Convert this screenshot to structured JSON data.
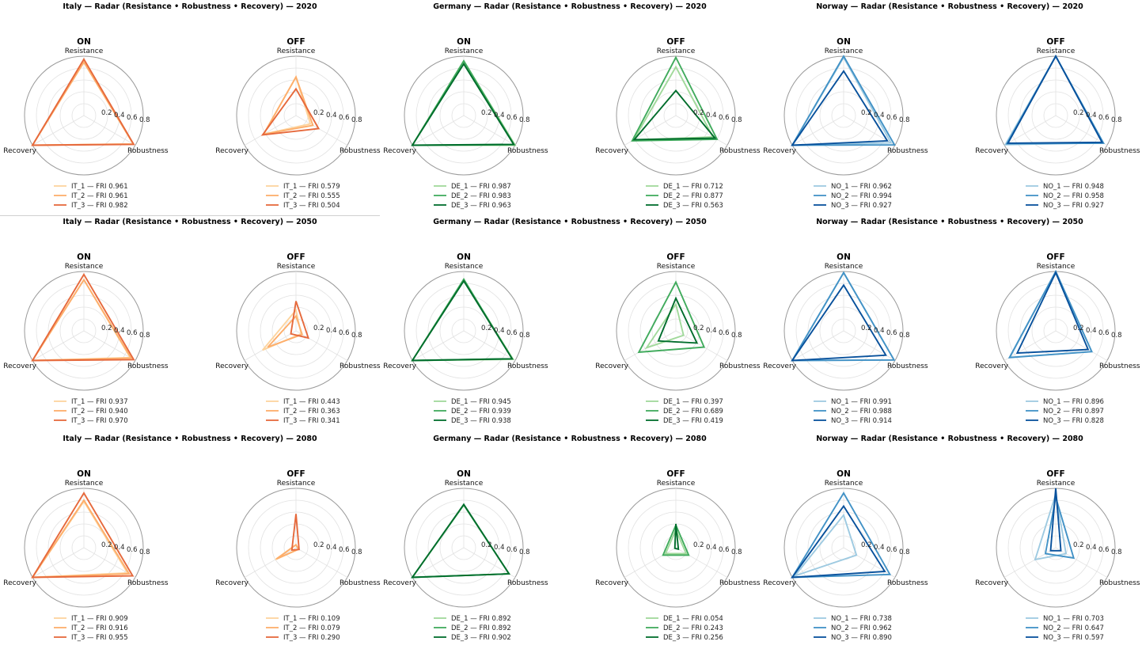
{
  "chart_data": {
    "type": "radar",
    "axes": [
      "Resistance",
      "Robustness",
      "Recovery"
    ],
    "rticks": [
      "0.2",
      "0.4",
      "0.6",
      "0.8"
    ],
    "rlim": [
      0,
      1
    ],
    "grid": true,
    "legend_position": "below",
    "countries": [
      {
        "id": "IT",
        "colors": [
          "#fdd49e",
          "#fdae6b",
          "#e6693c"
        ],
        "panels": [
          {
            "title": "Italy — Radar (Resistance • Robustness • Recovery) — 2020",
            "year": "2020",
            "on": {
              "label": "ON",
              "series": [
                {
                  "name": "IT_1",
                  "legend": "IT_1 — FRI 0.961",
                  "values": [
                    0.9,
                    0.96,
                    1.0
                  ]
                },
                {
                  "name": "IT_2",
                  "legend": "IT_2 — FRI 0.961",
                  "values": [
                    0.9,
                    0.96,
                    1.0
                  ]
                },
                {
                  "name": "IT_3",
                  "legend": "IT_3 — FRI 0.982",
                  "values": [
                    0.95,
                    0.97,
                    1.0
                  ]
                }
              ]
            },
            "off": {
              "label": "OFF",
              "series": [
                {
                  "name": "IT_1",
                  "legend": "IT_1 — FRI 0.579",
                  "values": [
                    0.65,
                    0.28,
                    0.63
                  ]
                },
                {
                  "name": "IT_2",
                  "legend": "IT_2 — FRI 0.555",
                  "values": [
                    0.65,
                    0.33,
                    0.63
                  ]
                },
                {
                  "name": "IT_3",
                  "legend": "IT_3 — FRI 0.504",
                  "values": [
                    0.45,
                    0.44,
                    0.65
                  ]
                }
              ]
            }
          },
          {
            "title": "Italy — Radar (Resistance • Robustness • Recovery) — 2050",
            "year": "2050",
            "on": {
              "label": "ON",
              "series": [
                {
                  "name": "IT_1",
                  "legend": "IT_1 — FRI 0.937",
                  "values": [
                    0.86,
                    0.9,
                    1.0
                  ]
                },
                {
                  "name": "IT_2",
                  "legend": "IT_2 — FRI 0.940",
                  "values": [
                    0.86,
                    0.92,
                    1.0
                  ]
                },
                {
                  "name": "IT_3",
                  "legend": "IT_3 — FRI 0.970",
                  "values": [
                    0.95,
                    0.97,
                    1.0
                  ]
                }
              ]
            },
            "off": {
              "label": "OFF",
              "series": [
                {
                  "name": "IT_1",
                  "legend": "IT_1 — FRI 0.443",
                  "values": [
                    0.35,
                    0.1,
                    0.65
                  ]
                },
                {
                  "name": "IT_2",
                  "legend": "IT_2 — FRI 0.363",
                  "values": [
                    0.25,
                    0.12,
                    0.55
                  ]
                },
                {
                  "name": "IT_3",
                  "legend": "IT_3 — FRI 0.341",
                  "values": [
                    0.5,
                    0.24,
                    0.1
                  ]
                }
              ]
            }
          },
          {
            "title": "Italy — Radar (Resistance • Robustness • Recovery) — 2080",
            "year": "2080",
            "on": {
              "label": "ON",
              "series": [
                {
                  "name": "IT_1",
                  "legend": "IT_1 — FRI 0.909",
                  "values": [
                    0.78,
                    0.85,
                    1.0
                  ]
                },
                {
                  "name": "IT_2",
                  "legend": "IT_2 — FRI 0.916",
                  "values": [
                    0.8,
                    0.88,
                    1.0
                  ]
                },
                {
                  "name": "IT_3",
                  "legend": "IT_3 — FRI 0.955",
                  "values": [
                    0.92,
                    0.95,
                    1.0
                  ]
                }
              ]
            },
            "off": {
              "label": "OFF",
              "series": [
                {
                  "name": "IT_1",
                  "legend": "IT_1 — FRI 0.109",
                  "values": [
                    0.05,
                    0.05,
                    0.4
                  ]
                },
                {
                  "name": "IT_2",
                  "legend": "IT_2 — FRI 0.079",
                  "values": [
                    0.05,
                    0.05,
                    0.38
                  ]
                },
                {
                  "name": "IT_3",
                  "legend": "IT_3 — FRI 0.290",
                  "values": [
                    0.57,
                    0.06,
                    0.08
                  ]
                }
              ]
            }
          }
        ]
      },
      {
        "id": "DE",
        "colors": [
          "#a1d99b",
          "#41ab5d",
          "#006d2c"
        ],
        "panels": [
          {
            "title": "Germany — Radar (Resistance • Robustness • Recovery) — 2020",
            "year": "2020",
            "on": {
              "label": "ON",
              "series": [
                {
                  "name": "DE_1",
                  "legend": "DE_1 — FRI 0.987",
                  "values": [
                    0.92,
                    1.0,
                    1.0
                  ]
                },
                {
                  "name": "DE_2",
                  "legend": "DE_2 — FRI 0.983",
                  "values": [
                    0.92,
                    0.98,
                    1.0
                  ]
                },
                {
                  "name": "DE_3",
                  "legend": "DE_3 — FRI 0.963",
                  "values": [
                    0.87,
                    0.97,
                    1.0
                  ]
                }
              ]
            },
            "off": {
              "label": "OFF",
              "series": [
                {
                  "name": "DE_1",
                  "legend": "DE_1 — FRI 0.712",
                  "values": [
                    0.82,
                    0.72,
                    0.82
                  ]
                },
                {
                  "name": "DE_2",
                  "legend": "DE_2 — FRI 0.877",
                  "values": [
                    0.98,
                    0.8,
                    0.85
                  ]
                },
                {
                  "name": "DE_3",
                  "legend": "DE_3 — FRI 0.563",
                  "values": [
                    0.42,
                    0.76,
                    0.81
                  ]
                }
              ]
            }
          },
          {
            "title": "Germany — Radar (Resistance • Robustness • Recovery) — 2050",
            "year": "2050",
            "on": {
              "label": "ON",
              "series": [
                {
                  "name": "DE_1",
                  "legend": "DE_1 — FRI 0.945",
                  "values": [
                    0.85,
                    0.96,
                    1.0
                  ]
                },
                {
                  "name": "DE_2",
                  "legend": "DE_2 — FRI 0.939",
                  "values": [
                    0.87,
                    0.94,
                    1.0
                  ]
                },
                {
                  "name": "DE_3",
                  "legend": "DE_3 — FRI 0.938",
                  "values": [
                    0.84,
                    0.94,
                    1.0
                  ]
                }
              ]
            },
            "off": {
              "label": "OFF",
              "series": [
                {
                  "name": "DE_1",
                  "legend": "DE_1 — FRI 0.397",
                  "values": [
                    0.45,
                    0.15,
                    0.57
                  ]
                },
                {
                  "name": "DE_2",
                  "legend": "DE_2 — FRI 0.689",
                  "values": [
                    0.82,
                    0.55,
                    0.72
                  ]
                },
                {
                  "name": "DE_3",
                  "legend": "DE_3 — FRI 0.419",
                  "values": [
                    0.55,
                    0.41,
                    0.34
                  ]
                }
              ]
            }
          },
          {
            "title": "Germany — Radar (Resistance • Robustness • Recovery) — 2080",
            "year": "2080",
            "on": {
              "label": "ON",
              "series": [
                {
                  "name": "DE_1",
                  "legend": "DE_1 — FRI 0.892",
                  "values": [
                    0.72,
                    0.88,
                    1.0
                  ]
                },
                {
                  "name": "DE_2",
                  "legend": "DE_2 — FRI 0.892",
                  "values": [
                    0.72,
                    0.88,
                    1.0
                  ]
                },
                {
                  "name": "DE_3",
                  "legend": "DE_3 — FRI 0.902",
                  "values": [
                    0.73,
                    0.88,
                    1.0
                  ]
                }
              ]
            },
            "off": {
              "label": "OFF",
              "series": [
                {
                  "name": "DE_1",
                  "legend": "DE_1 — FRI 0.054",
                  "values": [
                    0.3,
                    0.2,
                    0.2
                  ]
                },
                {
                  "name": "DE_2",
                  "legend": "DE_2 — FRI 0.243",
                  "values": [
                    0.38,
                    0.25,
                    0.25
                  ]
                },
                {
                  "name": "DE_3",
                  "legend": "DE_3 — FRI 0.256",
                  "values": [
                    0.4,
                    0.05,
                    0.02
                  ]
                }
              ]
            }
          }
        ]
      },
      {
        "id": "NO",
        "colors": [
          "#9ecae1",
          "#4292c6",
          "#08519c"
        ],
        "panels": [
          {
            "title": "Norway — Radar (Resistance • Robustness • Recovery) — 2020",
            "year": "2020",
            "on": {
              "label": "ON",
              "series": [
                {
                  "name": "NO_1",
                  "legend": "NO_1 — FRI 0.962",
                  "values": [
                    0.98,
                    0.92,
                    1.0
                  ]
                },
                {
                  "name": "NO_2",
                  "legend": "NO_2 — FRI 0.994",
                  "values": [
                    1.0,
                    0.99,
                    1.0
                  ]
                },
                {
                  "name": "NO_3",
                  "legend": "NO_3 — FRI 0.927",
                  "values": [
                    0.75,
                    0.85,
                    1.0
                  ]
                }
              ]
            },
            "off": {
              "label": "OFF",
              "series": [
                {
                  "name": "NO_1",
                  "legend": "NO_1 — FRI 0.948",
                  "values": [
                    1.0,
                    0.92,
                    0.98
                  ]
                },
                {
                  "name": "NO_2",
                  "legend": "NO_2 — FRI 0.958",
                  "values": [
                    1.0,
                    0.93,
                    0.95
                  ]
                },
                {
                  "name": "NO_3",
                  "legend": "NO_3 — FRI 0.927",
                  "values": [
                    1.0,
                    0.9,
                    0.93
                  ]
                }
              ]
            }
          },
          {
            "title": "Norway — Radar (Resistance • Robustness • Recovery) — 2050",
            "year": "2050",
            "on": {
              "label": "ON",
              "series": [
                {
                  "name": "NO_1",
                  "legend": "NO_1 — FRI 0.991",
                  "values": [
                    0.98,
                    0.98,
                    1.0
                  ]
                },
                {
                  "name": "NO_2",
                  "legend": "NO_2 — FRI 0.988",
                  "values": [
                    0.98,
                    0.98,
                    1.0
                  ]
                },
                {
                  "name": "NO_3",
                  "legend": "NO_3 — FRI 0.914",
                  "values": [
                    0.77,
                    0.82,
                    1.0
                  ]
                }
              ]
            },
            "off": {
              "label": "OFF",
              "series": [
                {
                  "name": "NO_1",
                  "legend": "NO_1 — FRI 0.896",
                  "values": [
                    1.0,
                    0.7,
                    0.89
                  ]
                },
                {
                  "name": "NO_2",
                  "legend": "NO_2 — FRI 0.897",
                  "values": [
                    1.0,
                    0.7,
                    0.9
                  ]
                },
                {
                  "name": "NO_3",
                  "legend": "NO_3 — FRI 0.828",
                  "values": [
                    0.98,
                    0.63,
                    0.75
                  ]
                }
              ]
            }
          },
          {
            "title": "Norway — Radar (Resistance • Robustness • Recovery) — 2080",
            "year": "2080",
            "on": {
              "label": "ON",
              "series": [
                {
                  "name": "NO_1",
                  "legend": "NO_1 — FRI 0.738",
                  "values": [
                    0.55,
                    0.25,
                    0.95
                  ]
                },
                {
                  "name": "NO_2",
                  "legend": "NO_2 — FRI 0.962",
                  "values": [
                    0.92,
                    0.9,
                    1.0
                  ]
                },
                {
                  "name": "NO_3",
                  "legend": "NO_3 — FRI 0.890",
                  "values": [
                    0.7,
                    0.8,
                    1.0
                  ]
                }
              ]
            },
            "off": {
              "label": "OFF",
              "series": [
                {
                  "name": "NO_1",
                  "legend": "NO_1 — FRI 0.703",
                  "values": [
                    0.9,
                    0.2,
                    0.4
                  ]
                },
                {
                  "name": "NO_2",
                  "legend": "NO_2 — FRI 0.647",
                  "values": [
                    0.85,
                    0.35,
                    0.2
                  ]
                },
                {
                  "name": "NO_3",
                  "legend": "NO_3 — FRI 0.597",
                  "values": [
                    1.0,
                    0.1,
                    0.1
                  ]
                }
              ]
            }
          }
        ]
      }
    ]
  }
}
